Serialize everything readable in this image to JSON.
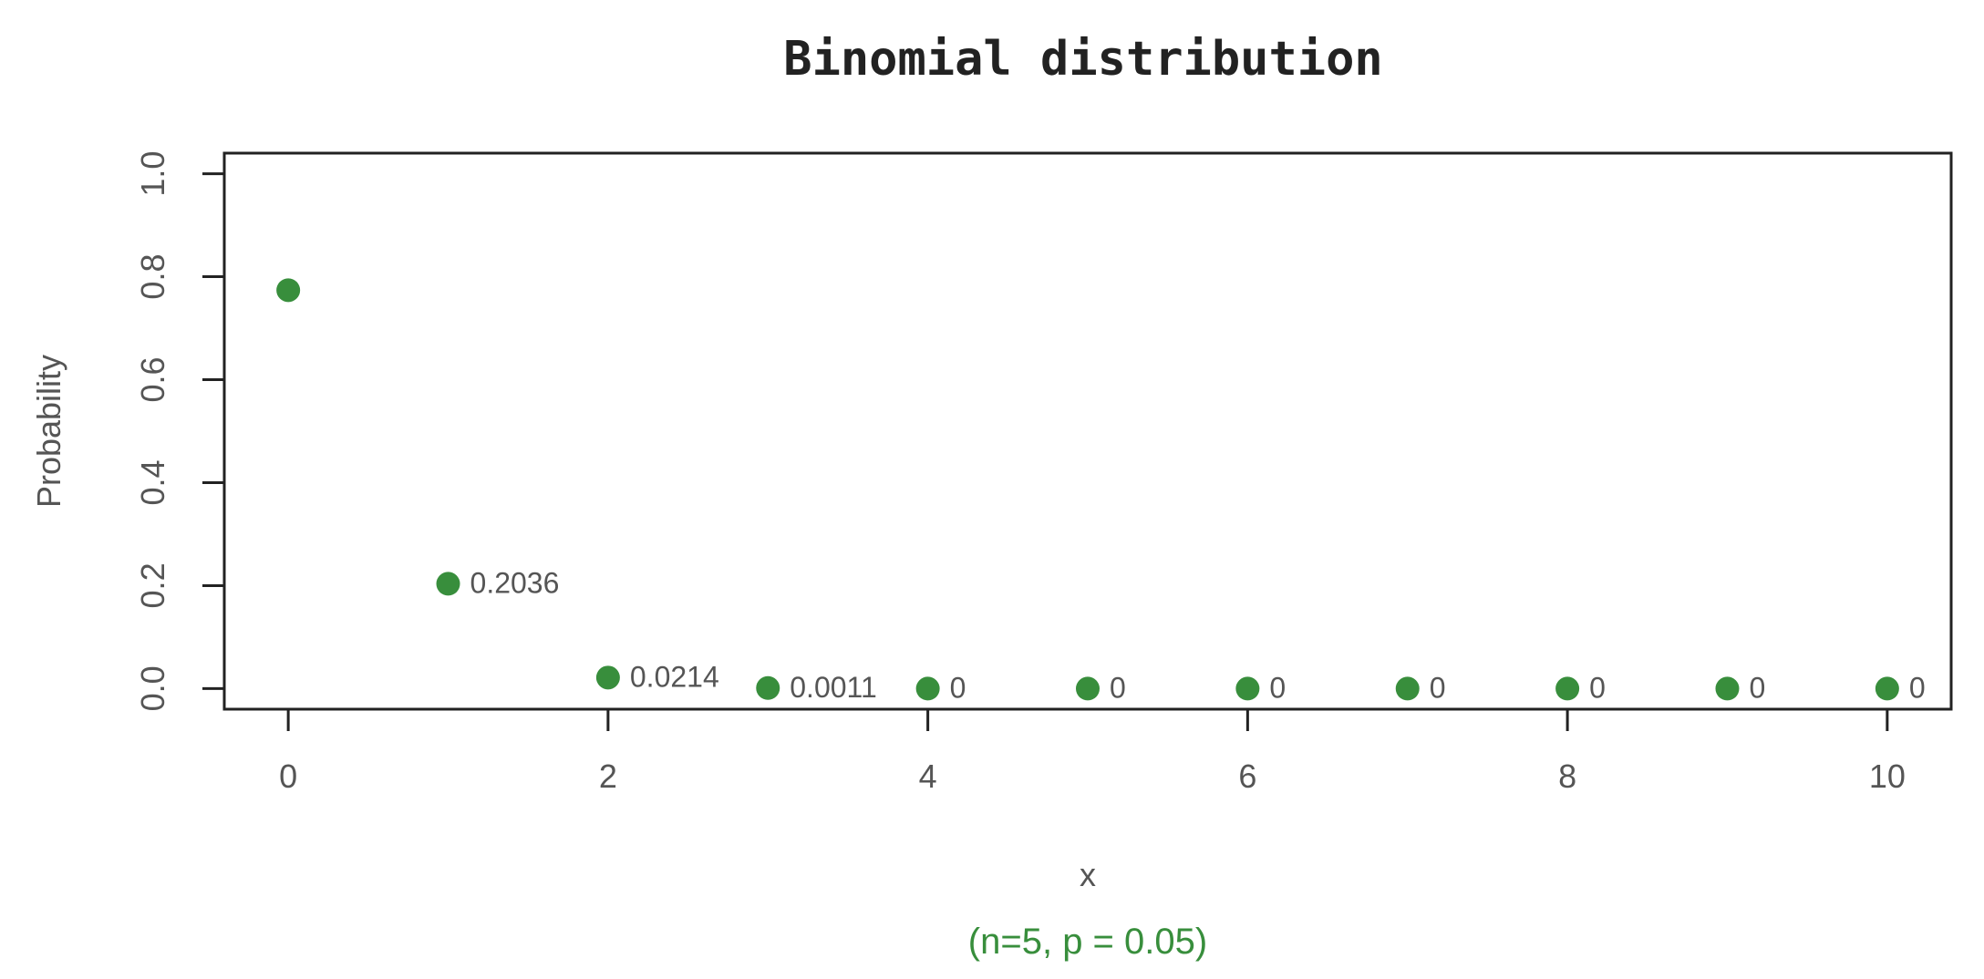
{
  "chart_data": {
    "type": "scatter",
    "title": "Binomial distribution",
    "subtitle": "(n=5, p = 0.05)",
    "xlabel": "x",
    "ylabel": "Probability",
    "xlim": [
      -0.4,
      10.4
    ],
    "ylim": [
      -0.04,
      1.04
    ],
    "x_ticks": [
      0,
      2,
      4,
      6,
      8,
      10
    ],
    "x_tick_labels": [
      "0",
      "2",
      "4",
      "6",
      "8",
      "10"
    ],
    "y_ticks": [
      0.0,
      0.2,
      0.4,
      0.6,
      0.8,
      1.0
    ],
    "y_tick_labels": [
      "0.0",
      "0.2",
      "0.4",
      "0.6",
      "0.8",
      "1.0"
    ],
    "grid": false,
    "legend": "none",
    "series": [
      {
        "x": [
          0,
          1,
          2,
          3,
          4,
          5,
          6,
          7,
          8,
          9,
          10
        ],
        "y": [
          0.7738,
          0.2036,
          0.0214,
          0.0011,
          0,
          0,
          0,
          0,
          0,
          0,
          0
        ],
        "labels": [
          "",
          "0.2036",
          "0.0214",
          "0.0011",
          "0",
          "0",
          "0",
          "0",
          "0",
          "0",
          "0"
        ]
      }
    ],
    "colors": {
      "marker": "#388E3C",
      "subtitle": "#388E3C",
      "axis": "#222222",
      "text": "#555555"
    }
  }
}
